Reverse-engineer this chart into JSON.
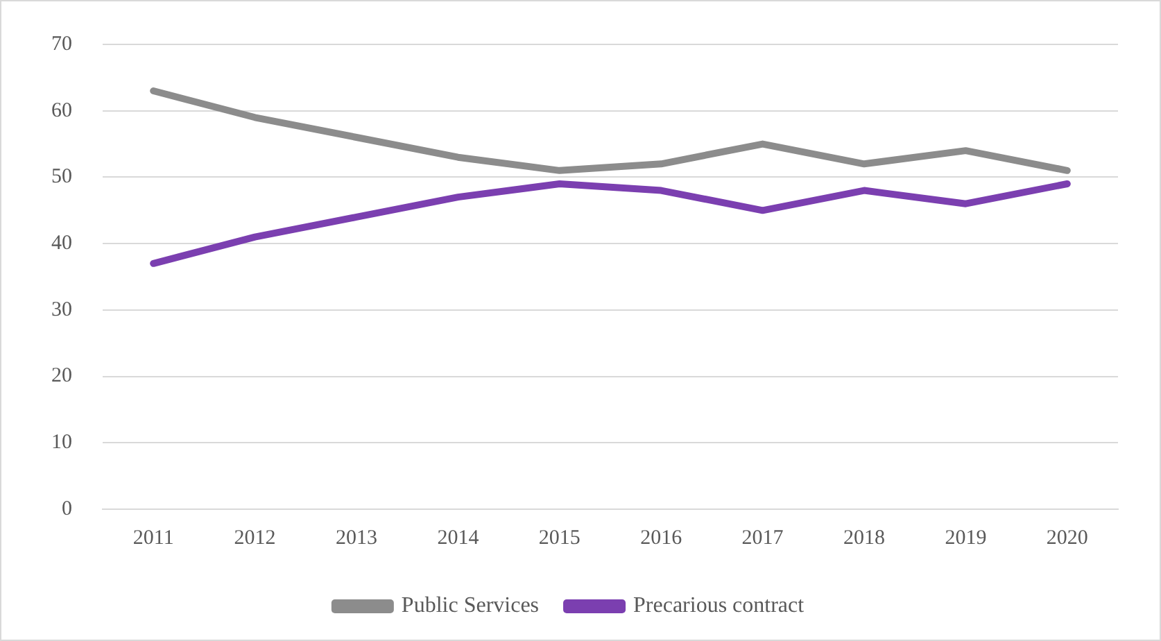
{
  "chart_data": {
    "type": "line",
    "categories": [
      "2011",
      "2012",
      "2013",
      "2014",
      "2015",
      "2016",
      "2017",
      "2018",
      "2019",
      "2020"
    ],
    "series": [
      {
        "name": "Public Services",
        "color": "#8c8c8c",
        "values": [
          63,
          59,
          56,
          53,
          51,
          52,
          55,
          52,
          54,
          51
        ]
      },
      {
        "name": "Precarious contract",
        "color": "#7b3fb0",
        "values": [
          37,
          41,
          44,
          47,
          49,
          48,
          45,
          48,
          46,
          49
        ]
      }
    ],
    "ylim": [
      0,
      70
    ],
    "yticks": [
      0,
      10,
      20,
      30,
      40,
      50,
      60,
      70
    ],
    "grid": "y",
    "legend": "bottom",
    "marker": "none",
    "line_style": "solid"
  }
}
